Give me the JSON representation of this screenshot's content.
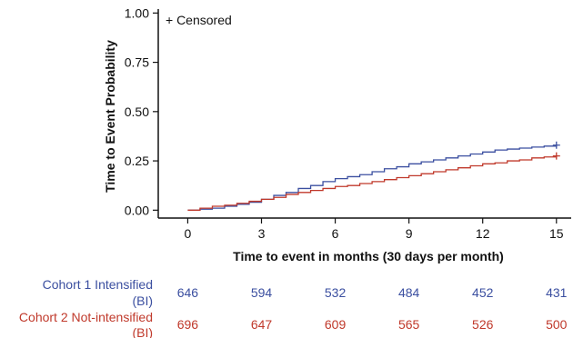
{
  "chart_data": {
    "type": "line",
    "title": "",
    "xlabel": "Time to event in months (30 days per month)",
    "ylabel": "Time to Event Probability",
    "xlim": [
      -1.2,
      15.6
    ],
    "ylim": [
      -0.04,
      1.02
    ],
    "x_ticks": [
      "0",
      "3",
      "6",
      "9",
      "12",
      "15"
    ],
    "y_ticks": [
      "0.00",
      "0.25",
      "0.50",
      "0.75",
      "1.00"
    ],
    "legend": {
      "text": "+ Censored",
      "position": "top-left"
    },
    "grid": false,
    "series": [
      {
        "name": "Cohort 1 Intensified (BI)",
        "color": "#3b4fa0",
        "x": [
          0,
          0.5,
          1,
          1.5,
          2,
          2.5,
          3,
          3.5,
          4,
          4.5,
          5,
          5.5,
          6,
          6.5,
          7,
          7.5,
          8,
          8.5,
          9,
          9.5,
          10,
          10.5,
          11,
          11.5,
          12,
          12.5,
          13,
          13.5,
          14,
          14.5,
          15
        ],
        "y": [
          0.0,
          0.005,
          0.01,
          0.02,
          0.03,
          0.04,
          0.055,
          0.075,
          0.09,
          0.11,
          0.125,
          0.145,
          0.16,
          0.17,
          0.18,
          0.195,
          0.21,
          0.22,
          0.235,
          0.245,
          0.255,
          0.265,
          0.275,
          0.285,
          0.295,
          0.305,
          0.31,
          0.315,
          0.32,
          0.325,
          0.33
        ]
      },
      {
        "name": "Cohort 2 Not-intensified (BI)",
        "color": "#c0392b",
        "x": [
          0,
          0.5,
          1,
          1.5,
          2,
          2.5,
          3,
          3.5,
          4,
          4.5,
          5,
          5.5,
          6,
          6.5,
          7,
          7.5,
          8,
          8.5,
          9,
          9.5,
          10,
          10.5,
          11,
          11.5,
          12,
          12.5,
          13,
          13.5,
          14,
          14.5,
          15
        ],
        "y": [
          0.0,
          0.01,
          0.02,
          0.025,
          0.035,
          0.045,
          0.055,
          0.065,
          0.08,
          0.09,
          0.1,
          0.11,
          0.12,
          0.125,
          0.135,
          0.145,
          0.155,
          0.165,
          0.175,
          0.185,
          0.195,
          0.205,
          0.215,
          0.225,
          0.235,
          0.24,
          0.25,
          0.255,
          0.265,
          0.27,
          0.275
        ]
      }
    ],
    "risk_table": {
      "times": [
        0,
        3,
        6,
        9,
        12,
        15
      ],
      "rows": [
        {
          "label_line1": "Cohort 1 Intensified",
          "label_line2": "(BI)",
          "color": "#3b4fa0",
          "values": [
            "646",
            "594",
            "532",
            "484",
            "452",
            "431"
          ]
        },
        {
          "label_line1": "Cohort 2 Not-intensified",
          "label_line2": "(BI)",
          "color": "#c0392b",
          "values": [
            "696",
            "647",
            "609",
            "565",
            "526",
            "500"
          ]
        }
      ]
    }
  }
}
